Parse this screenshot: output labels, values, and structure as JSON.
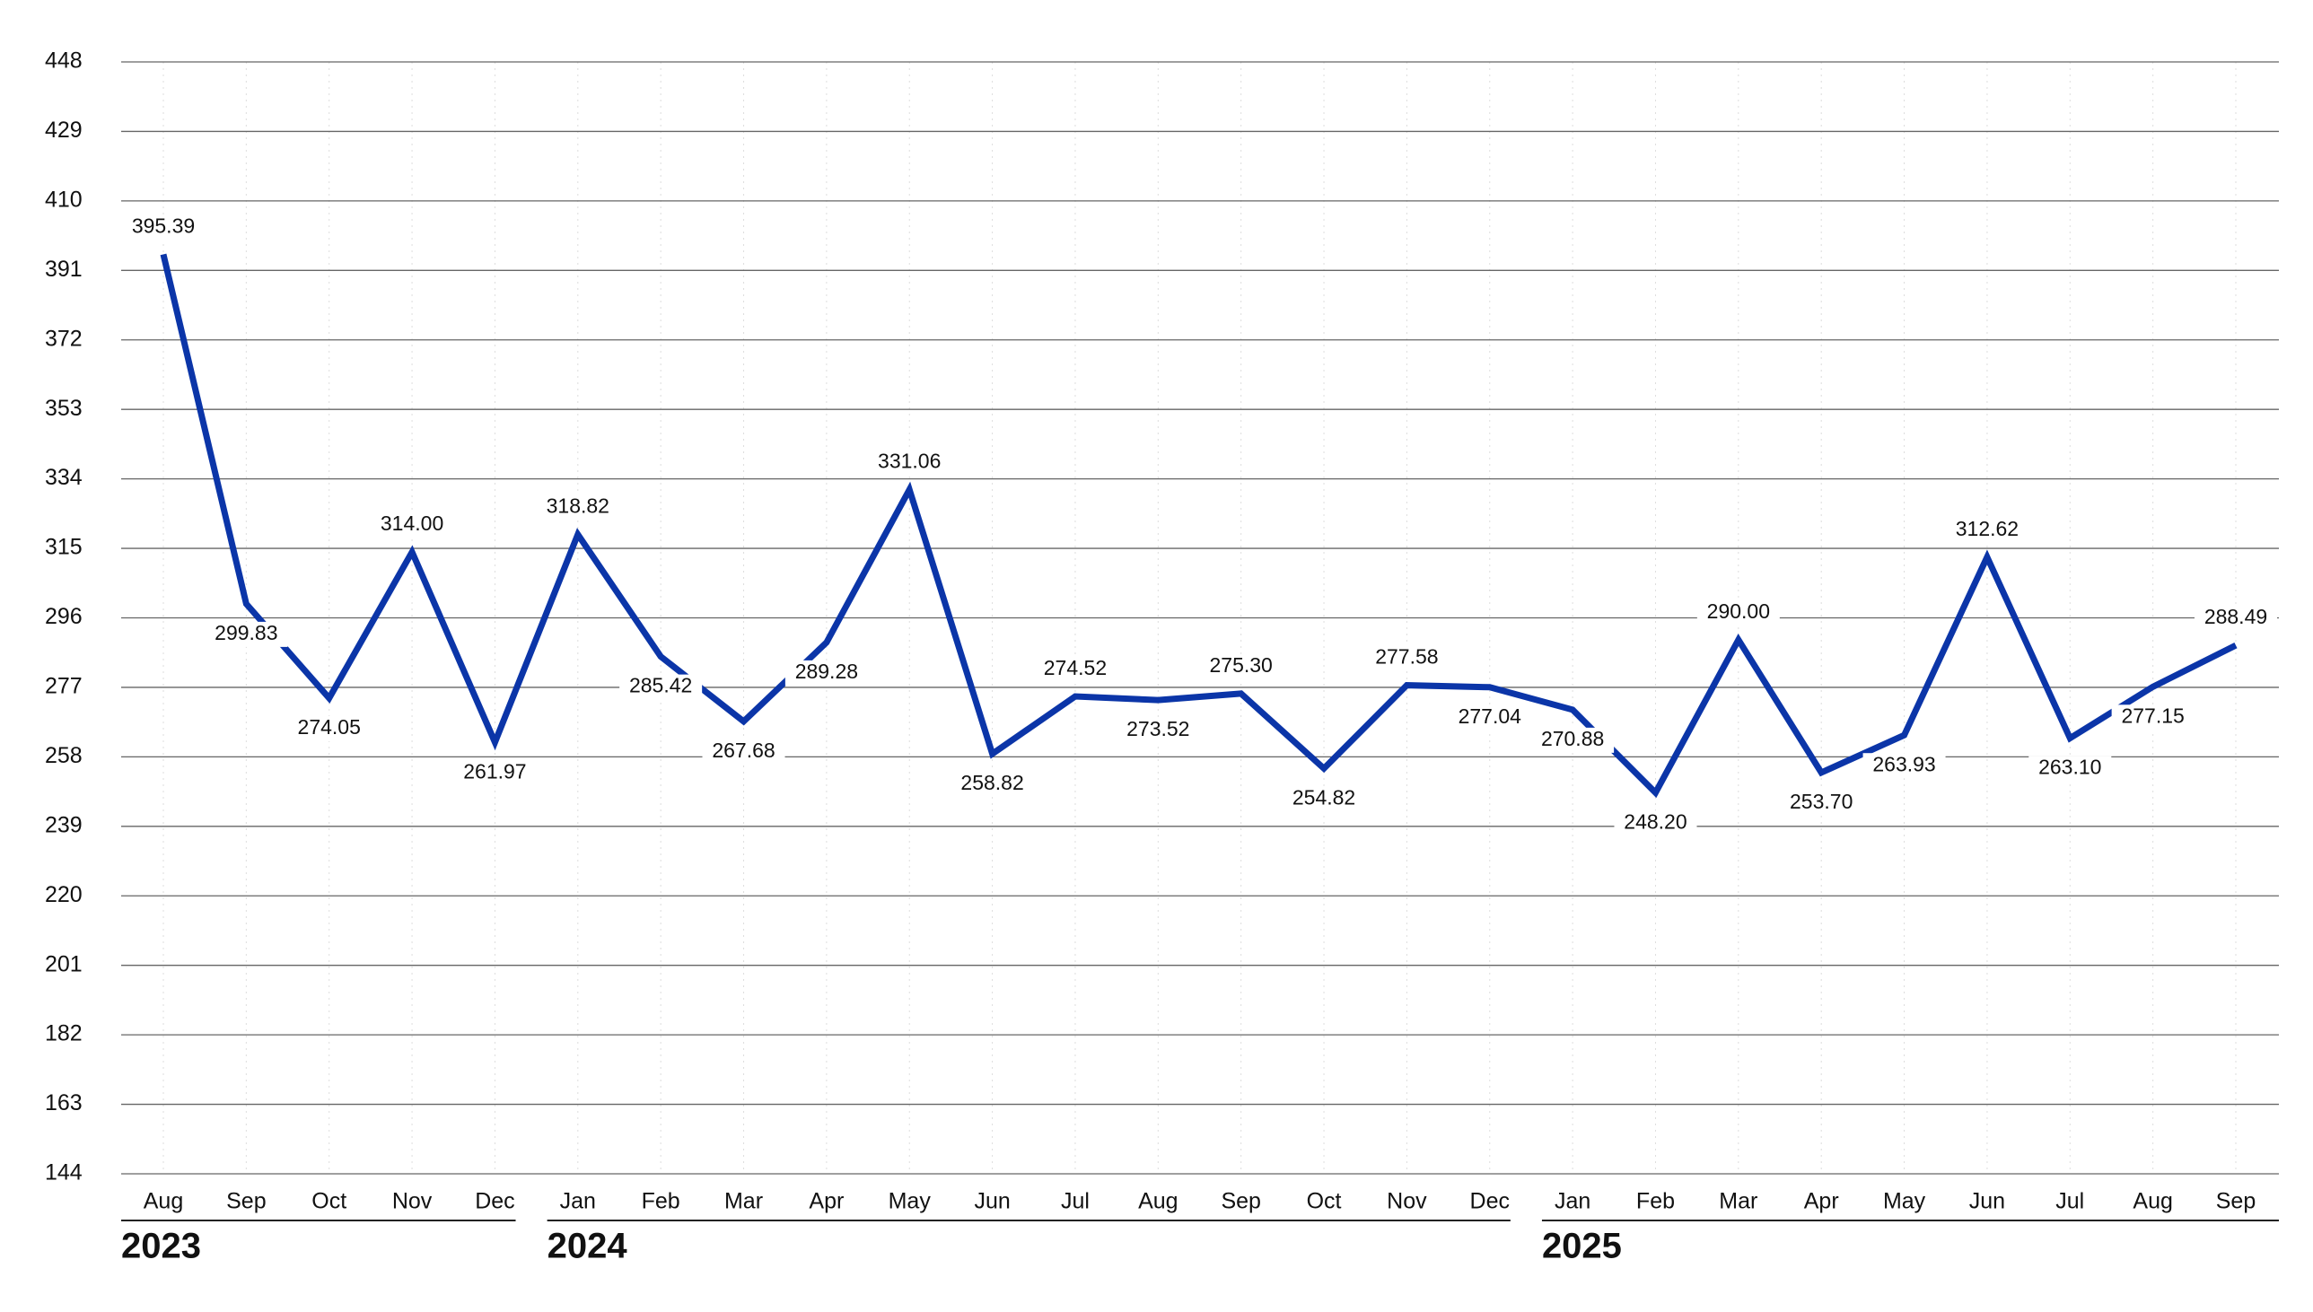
{
  "chart_data": {
    "type": "line",
    "groups": [
      {
        "label": "2023",
        "categories": [
          "Aug",
          "Sep",
          "Oct",
          "Nov",
          "Dec"
        ]
      },
      {
        "label": "2024",
        "categories": [
          "Jan",
          "Feb",
          "Mar",
          "Apr",
          "May",
          "Jun",
          "Jul",
          "Aug",
          "Sep",
          "Oct",
          "Nov",
          "Dec"
        ]
      },
      {
        "label": "2025",
        "categories": [
          "Jan",
          "Feb",
          "Mar",
          "Apr",
          "May",
          "Jun",
          "Jul",
          "Aug",
          "Sep"
        ]
      }
    ],
    "series": [
      {
        "color": "#0b35a8",
        "values": [
          395.39,
          299.83,
          274.05,
          314.0,
          261.97,
          318.82,
          285.42,
          267.68,
          289.28,
          331.06,
          258.82,
          274.52,
          273.52,
          275.3,
          254.82,
          277.58,
          277.04,
          270.88,
          248.2,
          290.0,
          253.7,
          263.93,
          312.62,
          263.1,
          277.15,
          288.49
        ],
        "value_labels": [
          "395.39",
          "299.83",
          "274.05",
          "314.00",
          "261.97",
          "318.82",
          "285.42",
          "267.68",
          "289.28",
          "331.06",
          "258.82",
          "274.52",
          "273.52",
          "275.30",
          "254.82",
          "277.58",
          "277.04",
          "270.88",
          "248.20",
          "290.00",
          "253.70",
          "263.93",
          "312.62",
          "263.10",
          "277.15",
          "288.49"
        ]
      }
    ],
    "ylim": [
      144,
      448
    ],
    "yticks": [
      144,
      163,
      182,
      201,
      220,
      239,
      258,
      277,
      296,
      315,
      334,
      353,
      372,
      391,
      410,
      429,
      448
    ],
    "grid": true
  }
}
